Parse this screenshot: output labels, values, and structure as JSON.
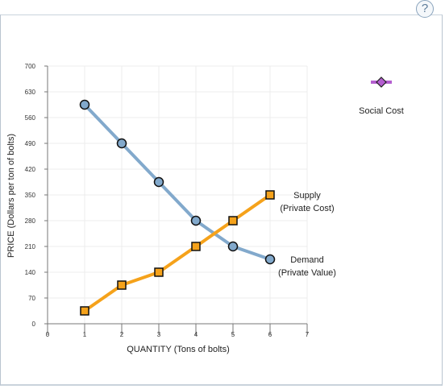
{
  "help_button": {
    "label": "?"
  },
  "chart_data": {
    "type": "line",
    "xlabel": "QUANTITY (Tons of bolts)",
    "ylabel": "PRICE (Dollars per ton of bolts)",
    "xlim": [
      0,
      7
    ],
    "ylim": [
      0,
      700
    ],
    "x_ticks": [
      0,
      1,
      2,
      3,
      4,
      5,
      6,
      7
    ],
    "y_ticks": [
      0,
      70,
      140,
      210,
      280,
      350,
      420,
      490,
      560,
      630,
      700
    ],
    "grid": true,
    "series": [
      {
        "name": "Demand (Private Value)",
        "label_lines": [
          "Demand",
          "(Private Value)"
        ],
        "x": [
          1,
          2,
          3,
          4,
          5,
          6
        ],
        "y": [
          595,
          490,
          385,
          280,
          210,
          175
        ],
        "color": "#82a9cc",
        "marker": "circle"
      },
      {
        "name": "Supply (Private Cost)",
        "label_lines": [
          "Supply",
          "(Private Cost)"
        ],
        "x": [
          1,
          2,
          3,
          4,
          5,
          6
        ],
        "y": [
          35,
          105,
          140,
          210,
          280,
          350
        ],
        "color": "#f5a21b",
        "marker": "square"
      }
    ],
    "legend": {
      "items": [
        {
          "name": "Social Cost",
          "color": "#b45ed0",
          "marker": "diamond"
        }
      ],
      "placement": "top-right"
    }
  }
}
